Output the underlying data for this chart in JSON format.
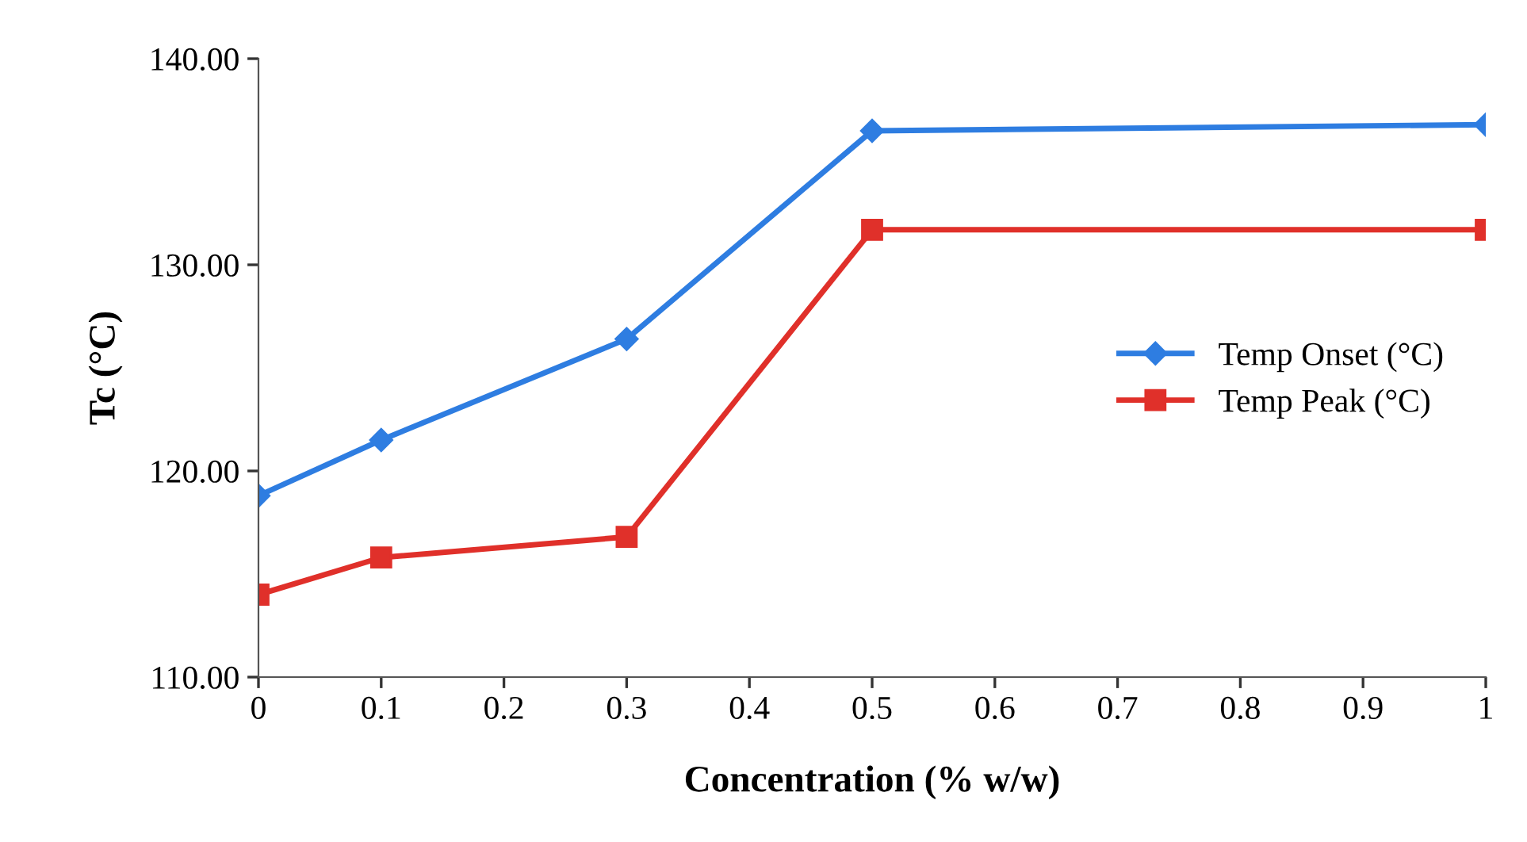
{
  "chart_data": {
    "type": "line",
    "xlabel": "Concentration (% w/w)",
    "ylabel": "Tc (°C)",
    "x": [
      0,
      0.1,
      0.3,
      0.5,
      1
    ],
    "series": [
      {
        "name": "Temp Onset (°C)",
        "color": "#2e7de1",
        "marker": "diamond",
        "values": [
          118.8,
          121.5,
          126.4,
          136.5,
          136.8
        ]
      },
      {
        "name": "Temp Peak (°C)",
        "color": "#e0302a",
        "marker": "square",
        "values": [
          114.0,
          115.8,
          116.8,
          131.7,
          131.7
        ]
      }
    ],
    "xlim": [
      0,
      1
    ],
    "xticks": [
      0,
      0.1,
      0.2,
      0.3,
      0.4,
      0.5,
      0.6,
      0.7,
      0.8,
      0.9,
      1
    ],
    "ylim": [
      110,
      140
    ],
    "yticks": [
      {
        "value": 110,
        "label": "110.00"
      },
      {
        "value": 120,
        "label": "120.00"
      },
      {
        "value": 130,
        "label": "130.00"
      },
      {
        "value": 140,
        "label": "140.00"
      }
    ],
    "grid": false,
    "legend": "right",
    "line_style": "solid"
  }
}
